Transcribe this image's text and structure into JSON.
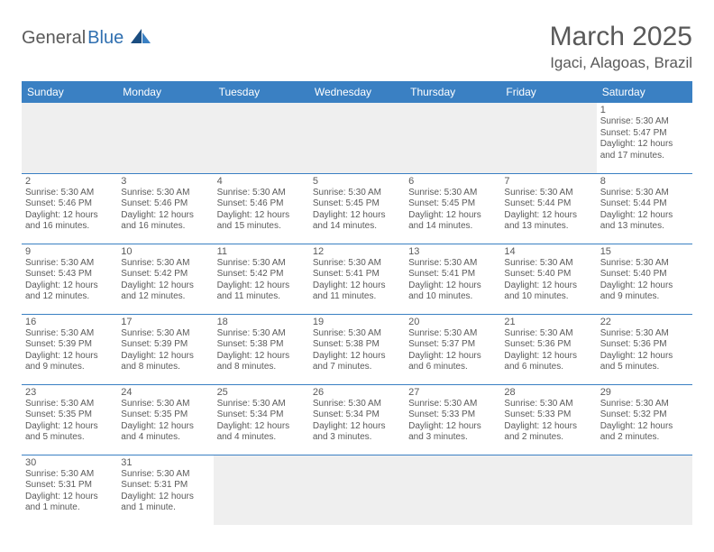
{
  "logo": {
    "text1": "General",
    "text2": "Blue",
    "primary_color": "#3a80c3",
    "dark_color": "#1a4d80"
  },
  "title": "March 2025",
  "location": "Igaci, Alagoas, Brazil",
  "colors": {
    "header_bg": "#3a80c3",
    "header_fg": "#ffffff",
    "cell_border": "#3a80c3",
    "empty_bg": "#efefef",
    "text": "#5a5a5a"
  },
  "day_headers": [
    "Sunday",
    "Monday",
    "Tuesday",
    "Wednesday",
    "Thursday",
    "Friday",
    "Saturday"
  ],
  "weeks": [
    [
      null,
      null,
      null,
      null,
      null,
      null,
      {
        "n": "1",
        "sr": "Sunrise: 5:30 AM",
        "ss": "Sunset: 5:47 PM",
        "dl": "Daylight: 12 hours and 17 minutes."
      }
    ],
    [
      {
        "n": "2",
        "sr": "Sunrise: 5:30 AM",
        "ss": "Sunset: 5:46 PM",
        "dl": "Daylight: 12 hours and 16 minutes."
      },
      {
        "n": "3",
        "sr": "Sunrise: 5:30 AM",
        "ss": "Sunset: 5:46 PM",
        "dl": "Daylight: 12 hours and 16 minutes."
      },
      {
        "n": "4",
        "sr": "Sunrise: 5:30 AM",
        "ss": "Sunset: 5:46 PM",
        "dl": "Daylight: 12 hours and 15 minutes."
      },
      {
        "n": "5",
        "sr": "Sunrise: 5:30 AM",
        "ss": "Sunset: 5:45 PM",
        "dl": "Daylight: 12 hours and 14 minutes."
      },
      {
        "n": "6",
        "sr": "Sunrise: 5:30 AM",
        "ss": "Sunset: 5:45 PM",
        "dl": "Daylight: 12 hours and 14 minutes."
      },
      {
        "n": "7",
        "sr": "Sunrise: 5:30 AM",
        "ss": "Sunset: 5:44 PM",
        "dl": "Daylight: 12 hours and 13 minutes."
      },
      {
        "n": "8",
        "sr": "Sunrise: 5:30 AM",
        "ss": "Sunset: 5:44 PM",
        "dl": "Daylight: 12 hours and 13 minutes."
      }
    ],
    [
      {
        "n": "9",
        "sr": "Sunrise: 5:30 AM",
        "ss": "Sunset: 5:43 PM",
        "dl": "Daylight: 12 hours and 12 minutes."
      },
      {
        "n": "10",
        "sr": "Sunrise: 5:30 AM",
        "ss": "Sunset: 5:42 PM",
        "dl": "Daylight: 12 hours and 12 minutes."
      },
      {
        "n": "11",
        "sr": "Sunrise: 5:30 AM",
        "ss": "Sunset: 5:42 PM",
        "dl": "Daylight: 12 hours and 11 minutes."
      },
      {
        "n": "12",
        "sr": "Sunrise: 5:30 AM",
        "ss": "Sunset: 5:41 PM",
        "dl": "Daylight: 12 hours and 11 minutes."
      },
      {
        "n": "13",
        "sr": "Sunrise: 5:30 AM",
        "ss": "Sunset: 5:41 PM",
        "dl": "Daylight: 12 hours and 10 minutes."
      },
      {
        "n": "14",
        "sr": "Sunrise: 5:30 AM",
        "ss": "Sunset: 5:40 PM",
        "dl": "Daylight: 12 hours and 10 minutes."
      },
      {
        "n": "15",
        "sr": "Sunrise: 5:30 AM",
        "ss": "Sunset: 5:40 PM",
        "dl": "Daylight: 12 hours and 9 minutes."
      }
    ],
    [
      {
        "n": "16",
        "sr": "Sunrise: 5:30 AM",
        "ss": "Sunset: 5:39 PM",
        "dl": "Daylight: 12 hours and 9 minutes."
      },
      {
        "n": "17",
        "sr": "Sunrise: 5:30 AM",
        "ss": "Sunset: 5:39 PM",
        "dl": "Daylight: 12 hours and 8 minutes."
      },
      {
        "n": "18",
        "sr": "Sunrise: 5:30 AM",
        "ss": "Sunset: 5:38 PM",
        "dl": "Daylight: 12 hours and 8 minutes."
      },
      {
        "n": "19",
        "sr": "Sunrise: 5:30 AM",
        "ss": "Sunset: 5:38 PM",
        "dl": "Daylight: 12 hours and 7 minutes."
      },
      {
        "n": "20",
        "sr": "Sunrise: 5:30 AM",
        "ss": "Sunset: 5:37 PM",
        "dl": "Daylight: 12 hours and 6 minutes."
      },
      {
        "n": "21",
        "sr": "Sunrise: 5:30 AM",
        "ss": "Sunset: 5:36 PM",
        "dl": "Daylight: 12 hours and 6 minutes."
      },
      {
        "n": "22",
        "sr": "Sunrise: 5:30 AM",
        "ss": "Sunset: 5:36 PM",
        "dl": "Daylight: 12 hours and 5 minutes."
      }
    ],
    [
      {
        "n": "23",
        "sr": "Sunrise: 5:30 AM",
        "ss": "Sunset: 5:35 PM",
        "dl": "Daylight: 12 hours and 5 minutes."
      },
      {
        "n": "24",
        "sr": "Sunrise: 5:30 AM",
        "ss": "Sunset: 5:35 PM",
        "dl": "Daylight: 12 hours and 4 minutes."
      },
      {
        "n": "25",
        "sr": "Sunrise: 5:30 AM",
        "ss": "Sunset: 5:34 PM",
        "dl": "Daylight: 12 hours and 4 minutes."
      },
      {
        "n": "26",
        "sr": "Sunrise: 5:30 AM",
        "ss": "Sunset: 5:34 PM",
        "dl": "Daylight: 12 hours and 3 minutes."
      },
      {
        "n": "27",
        "sr": "Sunrise: 5:30 AM",
        "ss": "Sunset: 5:33 PM",
        "dl": "Daylight: 12 hours and 3 minutes."
      },
      {
        "n": "28",
        "sr": "Sunrise: 5:30 AM",
        "ss": "Sunset: 5:33 PM",
        "dl": "Daylight: 12 hours and 2 minutes."
      },
      {
        "n": "29",
        "sr": "Sunrise: 5:30 AM",
        "ss": "Sunset: 5:32 PM",
        "dl": "Daylight: 12 hours and 2 minutes."
      }
    ],
    [
      {
        "n": "30",
        "sr": "Sunrise: 5:30 AM",
        "ss": "Sunset: 5:31 PM",
        "dl": "Daylight: 12 hours and 1 minute."
      },
      {
        "n": "31",
        "sr": "Sunrise: 5:30 AM",
        "ss": "Sunset: 5:31 PM",
        "dl": "Daylight: 12 hours and 1 minute."
      },
      null,
      null,
      null,
      null,
      null
    ]
  ]
}
